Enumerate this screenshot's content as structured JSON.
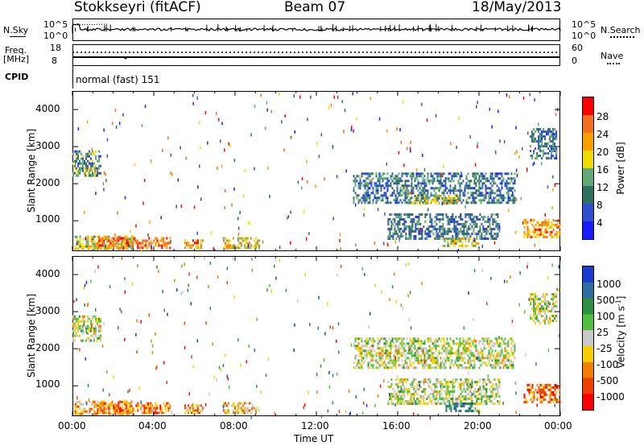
{
  "header": {
    "title": "Stokkseyri (fitACF)",
    "beam": "Beam 07",
    "date": "18/May/2013"
  },
  "top_panels": {
    "nsky_label": "N.Sky",
    "nsky_ticks": [
      "10^5",
      "10^0"
    ],
    "nsearch_label": "N.Search",
    "freq_label_1": "Freq.",
    "freq_label_2": "[MHz]",
    "freq_ticks": [
      "18",
      "8"
    ],
    "nave_ticks": [
      "60",
      "0"
    ],
    "nave_label": "Nave",
    "cpid_label": "CPID",
    "cpid_value": "normal (fast) 151"
  },
  "chart_data": [
    {
      "type": "heatmap",
      "name": "power",
      "ylabel": "Slant Range [km]",
      "yticks": [
        "4000",
        "3000",
        "2000",
        "1000"
      ],
      "ylim": [
        180,
        4500
      ],
      "xlim": [
        0,
        24
      ],
      "colorbar_label": "Power [dB]",
      "colorbar_ticks": [
        "28",
        "24",
        "20",
        "16",
        "12",
        "8",
        "4"
      ],
      "colorbar_colors": [
        "#ff0000",
        "#f07020",
        "#f8a000",
        "#f0dc00",
        "#60a878",
        "#2f6f60",
        "#2f4fd0",
        "#1a1aff"
      ],
      "regions": [
        {
          "t0": 0.0,
          "t1": 1.4,
          "r0": 2200,
          "r1": 2900,
          "level": 0.35
        },
        {
          "t0": 0.2,
          "t1": 1.2,
          "r0": 2250,
          "r1": 2450,
          "level": 0.55
        },
        {
          "t0": 0.1,
          "t1": 3.0,
          "r0": 240,
          "r1": 600,
          "level": 0.55
        },
        {
          "t0": 1.2,
          "t1": 4.8,
          "r0": 260,
          "r1": 560,
          "level": 0.8
        },
        {
          "t0": 5.5,
          "t1": 6.4,
          "r0": 250,
          "r1": 500,
          "level": 0.75
        },
        {
          "t0": 7.4,
          "t1": 9.2,
          "r0": 280,
          "r1": 560,
          "level": 0.6
        },
        {
          "t0": 13.8,
          "t1": 21.8,
          "r0": 1500,
          "r1": 2300,
          "level": 0.3
        },
        {
          "t0": 16.5,
          "t1": 19.0,
          "r0": 1450,
          "r1": 1700,
          "level": 0.5
        },
        {
          "t0": 15.5,
          "t1": 21.0,
          "r0": 500,
          "r1": 1200,
          "level": 0.3
        },
        {
          "t0": 18.2,
          "t1": 20.0,
          "r0": 350,
          "r1": 550,
          "level": 0.55
        },
        {
          "t0": 22.2,
          "t1": 24.0,
          "r0": 550,
          "r1": 1050,
          "level": 0.7
        },
        {
          "t0": 22.5,
          "t1": 23.8,
          "r0": 2700,
          "r1": 3500,
          "level": 0.3
        }
      ]
    },
    {
      "type": "heatmap",
      "name": "velocity",
      "ylabel": "Slant Range [km]",
      "yticks": [
        "4000",
        "3000",
        "2000",
        "1000"
      ],
      "ylim": [
        180,
        4500
      ],
      "xlim": [
        0,
        24
      ],
      "xlabel": "Time UT",
      "xticks": [
        "00:00",
        "04:00",
        "08:00",
        "12:00",
        "16:00",
        "20:00",
        "00:00"
      ],
      "colorbar_label": "Velocity",
      "colorbar_unit": "[m s",
      "colorbar_unit_sup": "-1",
      "colorbar_unit_end": "]",
      "colorbar_ticks": [
        "1000",
        "500",
        "100",
        "25",
        "-25",
        "-100",
        "-500",
        "-1000"
      ],
      "colorbar_colors": [
        "#1a3ccf",
        "#2f6ea0",
        "#2f8f40",
        "#50c040",
        "#c8c8c8",
        "#f8d000",
        "#f08000",
        "#f04000",
        "#ff0000"
      ],
      "regions": [
        {
          "t0": 0.0,
          "t1": 1.4,
          "r0": 2200,
          "r1": 2900,
          "level": 0.5
        },
        {
          "t0": 0.1,
          "t1": 3.0,
          "r0": 240,
          "r1": 600,
          "level": 0.3
        },
        {
          "t0": 1.2,
          "t1": 4.8,
          "r0": 260,
          "r1": 560,
          "level": 0.25
        },
        {
          "t0": 5.5,
          "t1": 6.4,
          "r0": 250,
          "r1": 500,
          "level": 0.3
        },
        {
          "t0": 7.4,
          "t1": 9.2,
          "r0": 280,
          "r1": 560,
          "level": 0.35
        },
        {
          "t0": 13.8,
          "t1": 21.8,
          "r0": 1500,
          "r1": 2300,
          "level": 0.5
        },
        {
          "t0": 15.5,
          "t1": 21.0,
          "r0": 500,
          "r1": 1200,
          "level": 0.5
        },
        {
          "t0": 18.2,
          "t1": 20.0,
          "r0": 350,
          "r1": 550,
          "level": 0.75
        },
        {
          "t0": 22.2,
          "t1": 24.0,
          "r0": 550,
          "r1": 1050,
          "level": 0.2
        },
        {
          "t0": 22.5,
          "t1": 23.8,
          "r0": 2700,
          "r1": 3500,
          "level": 0.5
        }
      ]
    }
  ]
}
